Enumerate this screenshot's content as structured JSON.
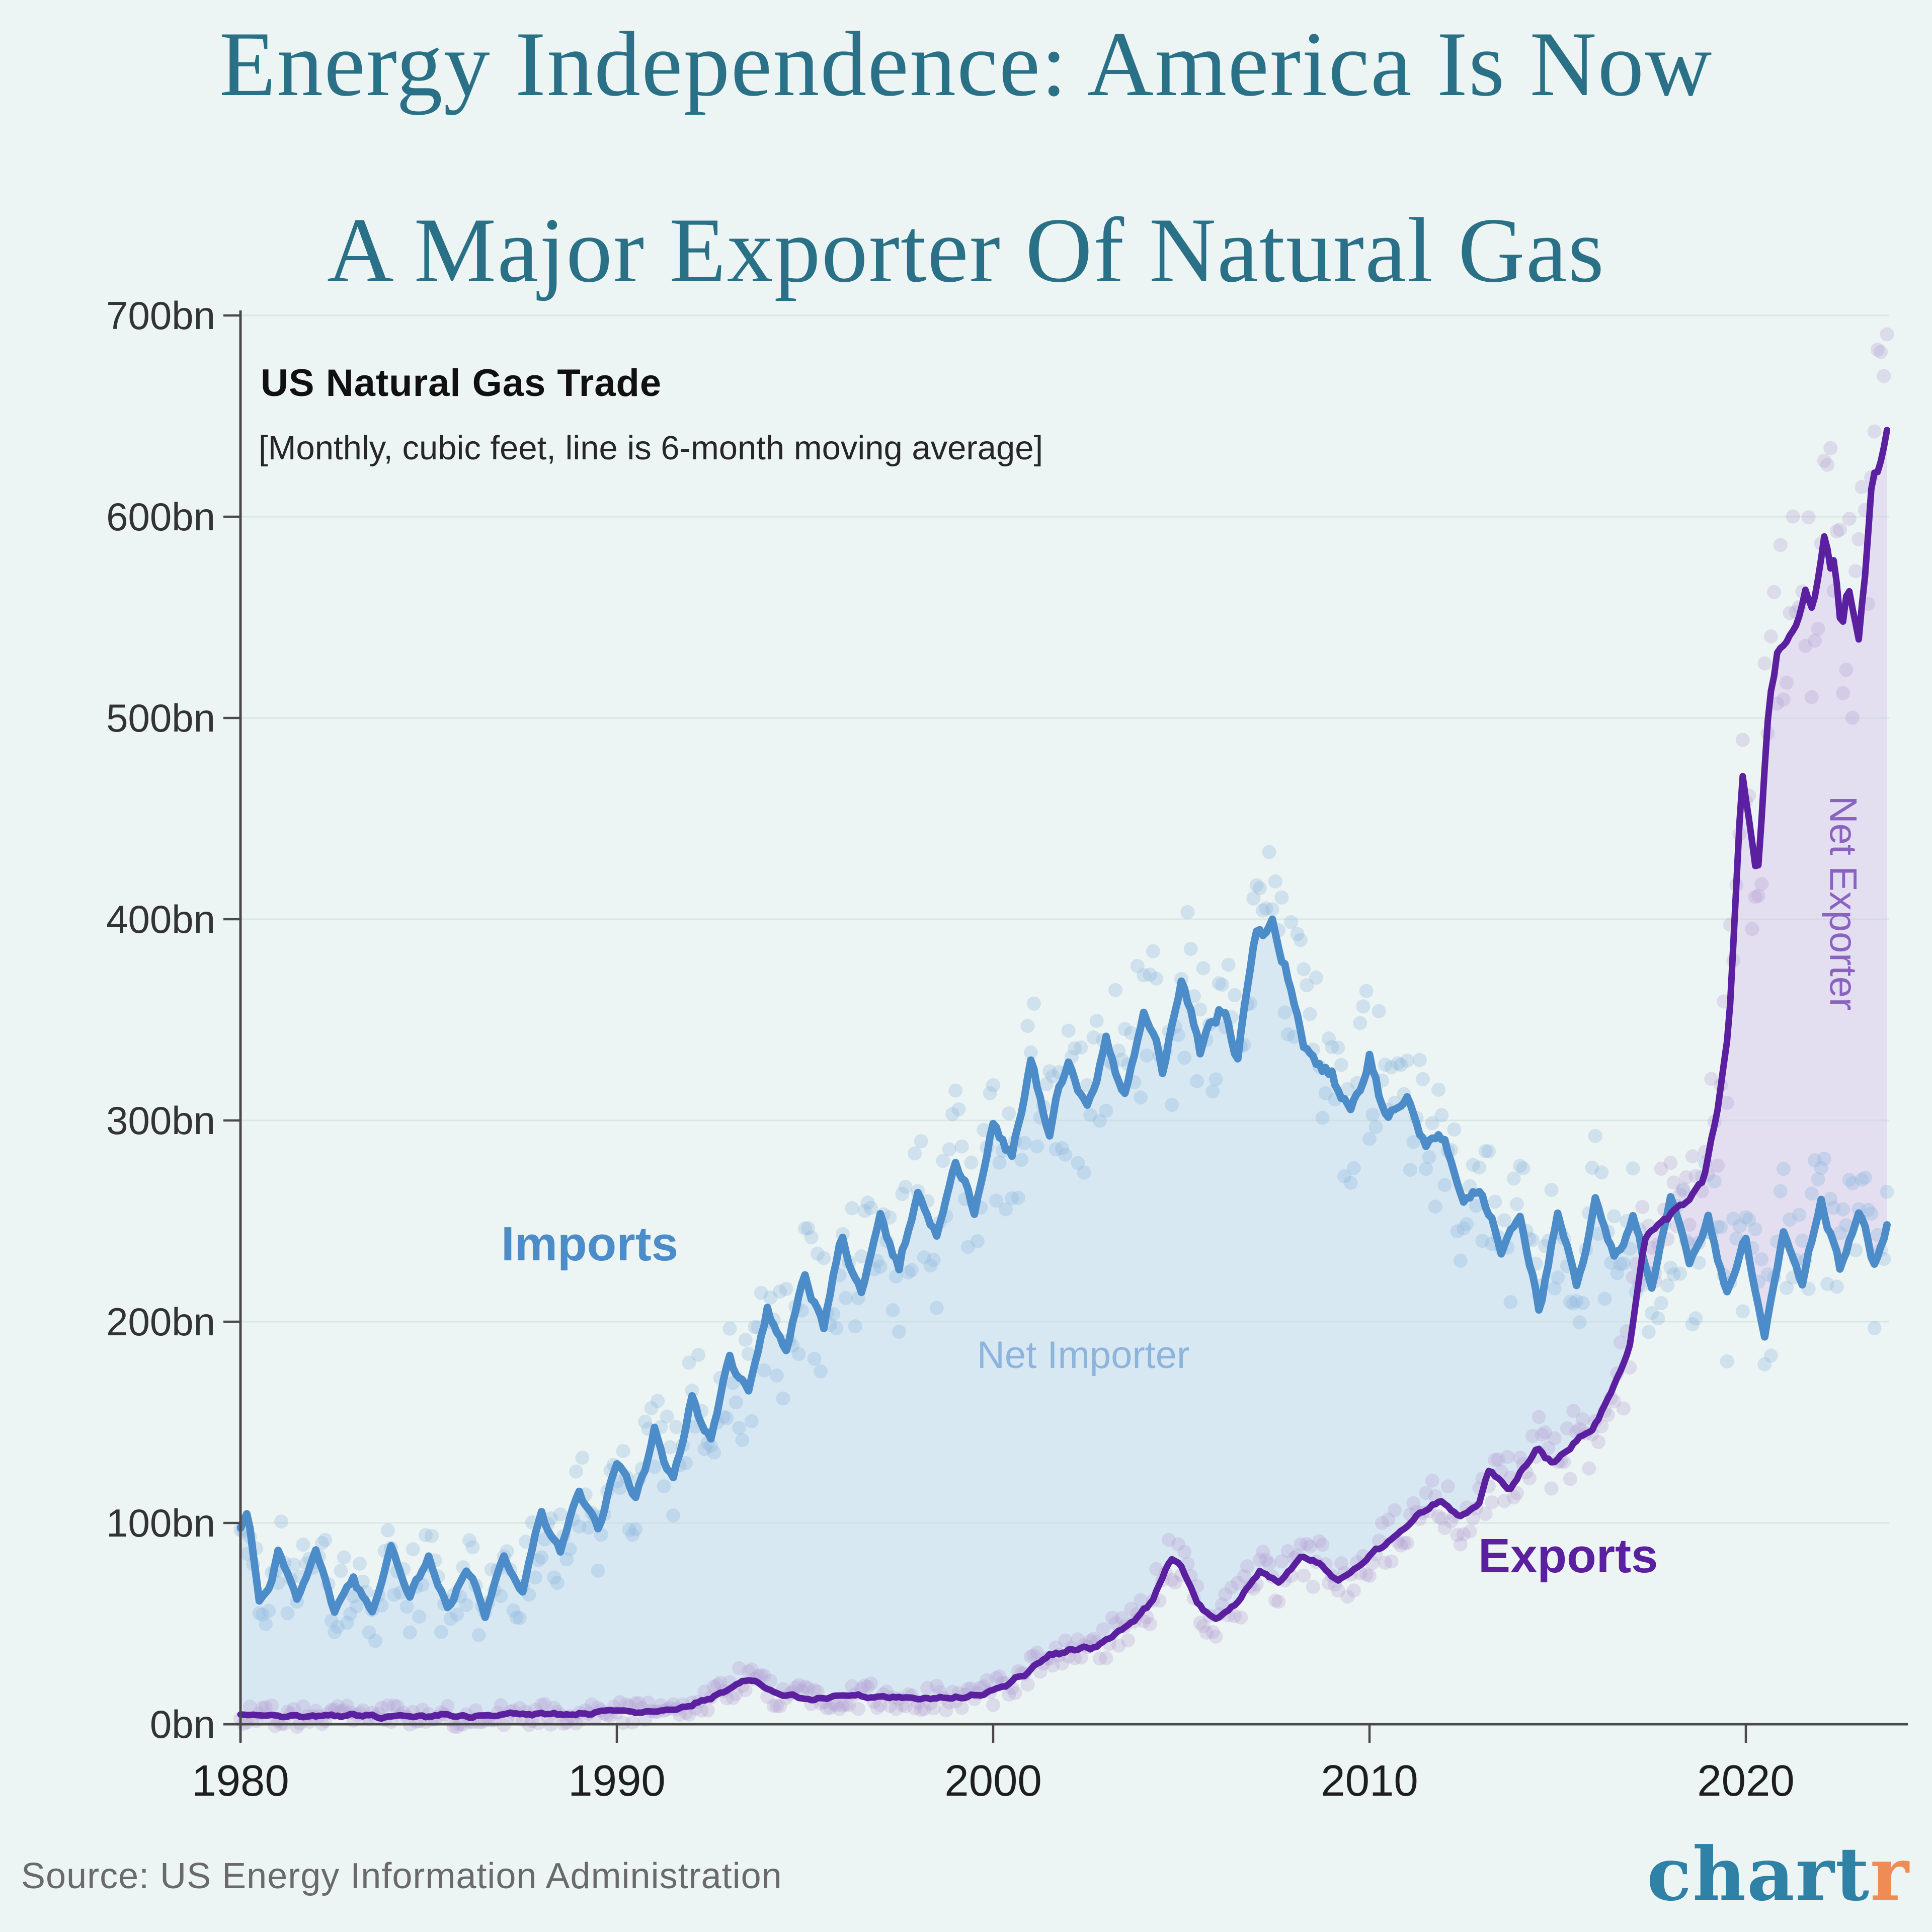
{
  "title": {
    "line1": "Energy Independence: America Is Now",
    "line2": "A Major Exporter Of Natural Gas"
  },
  "source": {
    "text": "Source: US Energy Information Administration"
  },
  "logo": {
    "chart": "chart",
    "r": "r"
  },
  "colors": {
    "background": "#ECF5F3",
    "title_teal": "#2A7187",
    "axis": "#4A4A4A",
    "gridline": "#C9D8D7",
    "y_tick_text": "#333333",
    "x_tick_text": "#1E1E1E",
    "imports_line": "#4B8CC9",
    "imports_scatter": "#8FB6DE",
    "net_importer_fill": "#D8E8F3",
    "net_importer_text": "#8CB4DC",
    "exports_line": "#5B20A0",
    "exports_scatter": "#B3A0D4",
    "net_exporter_fill": "#E3DEF0",
    "net_exporter_text": "#8A63C0",
    "logo_teal": "#2F81A6",
    "logo_orange": "#EF8C55",
    "source_gray": "#6A6A6A"
  },
  "chart_data": {
    "type": "line",
    "title": "US Natural Gas Trade",
    "subtitle": "[Monthly, cubic feet, line is 6-month moving average]",
    "unit": "billion cubic feet per month",
    "xlim": [
      1980,
      2023.8
    ],
    "ylim": [
      0,
      700
    ],
    "x_ticks": [
      1980,
      1990,
      2000,
      2010,
      2020
    ],
    "y_ticks": [
      0,
      100,
      200,
      300,
      400,
      500,
      600,
      700
    ],
    "y_tick_labels": [
      "0bn",
      "100bn",
      "200bn",
      "300bn",
      "400bn",
      "500bn",
      "600bn",
      "700bn"
    ],
    "x_tick_labels": [
      "1980",
      "1990",
      "2000",
      "2010",
      "2020"
    ],
    "grid": "horizontal gridlines at every 100bn",
    "legend_position": "inline annotations on chart",
    "annotations": {
      "imports": "Imports",
      "exports": "Exports",
      "net_importer": "Net Importer",
      "net_exporter": "Net Exporter"
    },
    "regions": {
      "net_importer": "shaded area between Imports (upper) and Exports (lower) lines from 1980 until crossover ~2017",
      "net_exporter": "shaded area between Exports (upper) and Imports (lower) lines from crossover ~2017 to end of data"
    },
    "crossover_year_approx": 2017.1,
    "series": [
      {
        "name": "Imports",
        "style": "thick line = 6-month moving average, pale dots = monthly values",
        "anchors": [
          [
            1980.0,
            98
          ],
          [
            1980.2,
            105
          ],
          [
            1980.5,
            62
          ],
          [
            1980.8,
            70
          ],
          [
            1981.0,
            88
          ],
          [
            1981.5,
            60
          ],
          [
            1982.0,
            86
          ],
          [
            1982.5,
            58
          ],
          [
            1983.0,
            72
          ],
          [
            1983.5,
            55
          ],
          [
            1984.0,
            88
          ],
          [
            1984.5,
            63
          ],
          [
            1985.0,
            84
          ],
          [
            1985.5,
            58
          ],
          [
            1986.0,
            78
          ],
          [
            1986.5,
            55
          ],
          [
            1987.0,
            84
          ],
          [
            1987.5,
            66
          ],
          [
            1988.0,
            106
          ],
          [
            1988.5,
            86
          ],
          [
            1989.0,
            116
          ],
          [
            1989.5,
            96
          ],
          [
            1990.0,
            132
          ],
          [
            1990.5,
            112
          ],
          [
            1991.0,
            146
          ],
          [
            1991.5,
            122
          ],
          [
            1992.0,
            162
          ],
          [
            1992.5,
            142
          ],
          [
            1993.0,
            182
          ],
          [
            1993.5,
            162
          ],
          [
            1994.0,
            206
          ],
          [
            1994.5,
            186
          ],
          [
            1995.0,
            222
          ],
          [
            1995.5,
            200
          ],
          [
            1996.0,
            242
          ],
          [
            1996.5,
            216
          ],
          [
            1997.0,
            252
          ],
          [
            1997.5,
            226
          ],
          [
            1998.0,
            266
          ],
          [
            1998.5,
            242
          ],
          [
            1999.0,
            282
          ],
          [
            1999.5,
            256
          ],
          [
            2000.0,
            302
          ],
          [
            2000.5,
            282
          ],
          [
            2001.0,
            332
          ],
          [
            2001.5,
            296
          ],
          [
            2002.0,
            330
          ],
          [
            2002.5,
            306
          ],
          [
            2003.0,
            342
          ],
          [
            2003.5,
            312
          ],
          [
            2004.0,
            356
          ],
          [
            2004.5,
            326
          ],
          [
            2005.0,
            372
          ],
          [
            2005.5,
            336
          ],
          [
            2006.0,
            356
          ],
          [
            2006.5,
            332
          ],
          [
            2007.0,
            392
          ],
          [
            2007.4,
            400
          ],
          [
            2007.8,
            372
          ],
          [
            2008.0,
            356
          ],
          [
            2008.5,
            330
          ],
          [
            2009.0,
            322
          ],
          [
            2009.5,
            300
          ],
          [
            2010.0,
            332
          ],
          [
            2010.5,
            300
          ],
          [
            2011.0,
            316
          ],
          [
            2011.5,
            286
          ],
          [
            2012.0,
            292
          ],
          [
            2012.5,
            262
          ],
          [
            2013.0,
            266
          ],
          [
            2013.5,
            236
          ],
          [
            2014.0,
            252
          ],
          [
            2014.5,
            206
          ],
          [
            2015.0,
            252
          ],
          [
            2015.5,
            216
          ],
          [
            2016.0,
            262
          ],
          [
            2016.5,
            230
          ],
          [
            2017.0,
            252
          ],
          [
            2017.5,
            216
          ],
          [
            2018.0,
            262
          ],
          [
            2018.5,
            226
          ],
          [
            2019.0,
            252
          ],
          [
            2019.5,
            212
          ],
          [
            2020.0,
            238
          ],
          [
            2020.5,
            192
          ],
          [
            2021.0,
            246
          ],
          [
            2021.5,
            216
          ],
          [
            2022.0,
            262
          ],
          [
            2022.5,
            226
          ],
          [
            2023.0,
            256
          ],
          [
            2023.4,
            228
          ],
          [
            2023.8,
            246
          ]
        ]
      },
      {
        "name": "Exports",
        "style": "thick line = 6-month moving average, pale dots = monthly values",
        "anchors": [
          [
            1980.0,
            4
          ],
          [
            1982.0,
            4
          ],
          [
            1984.0,
            4
          ],
          [
            1986.0,
            4
          ],
          [
            1988.0,
            5
          ],
          [
            1990.0,
            6
          ],
          [
            1991.0,
            7
          ],
          [
            1992.0,
            9
          ],
          [
            1992.8,
            16
          ],
          [
            1993.2,
            21
          ],
          [
            1993.6,
            22
          ],
          [
            1994.2,
            15
          ],
          [
            1995.0,
            13
          ],
          [
            1996.0,
            14
          ],
          [
            1997.0,
            14
          ],
          [
            1998.0,
            13
          ],
          [
            1999.0,
            13
          ],
          [
            2000.0,
            16
          ],
          [
            2000.8,
            24
          ],
          [
            2001.5,
            34
          ],
          [
            2002.2,
            37
          ],
          [
            2002.8,
            39
          ],
          [
            2003.5,
            48
          ],
          [
            2004.2,
            60
          ],
          [
            2004.7,
            82
          ],
          [
            2005.0,
            78
          ],
          [
            2005.4,
            60
          ],
          [
            2005.9,
            52
          ],
          [
            2006.5,
            61
          ],
          [
            2007.1,
            76
          ],
          [
            2007.6,
            70
          ],
          [
            2008.2,
            84
          ],
          [
            2008.7,
            78
          ],
          [
            2009.2,
            71
          ],
          [
            2009.8,
            81
          ],
          [
            2010.3,
            88
          ],
          [
            2010.9,
            97
          ],
          [
            2011.4,
            106
          ],
          [
            2011.9,
            110
          ],
          [
            2012.4,
            102
          ],
          [
            2012.9,
            109
          ],
          [
            2013.2,
            128
          ],
          [
            2013.7,
            117
          ],
          [
            2014.1,
            127
          ],
          [
            2014.5,
            137
          ],
          [
            2014.9,
            129
          ],
          [
            2015.4,
            139
          ],
          [
            2015.9,
            147
          ],
          [
            2016.4,
            163
          ],
          [
            2016.9,
            186
          ],
          [
            2017.3,
            242
          ],
          [
            2017.7,
            250
          ],
          [
            2018.1,
            255
          ],
          [
            2018.5,
            262
          ],
          [
            2018.9,
            272
          ],
          [
            2019.2,
            300
          ],
          [
            2019.55,
            345
          ],
          [
            2019.9,
            476
          ],
          [
            2020.3,
            416
          ],
          [
            2020.6,
            505
          ],
          [
            2020.85,
            538
          ],
          [
            2021.05,
            535
          ],
          [
            2021.25,
            546
          ],
          [
            2021.45,
            552
          ],
          [
            2021.6,
            564
          ],
          [
            2021.75,
            556
          ],
          [
            2021.95,
            572
          ],
          [
            2022.1,
            594
          ],
          [
            2022.25,
            576
          ],
          [
            2022.35,
            580
          ],
          [
            2022.55,
            542
          ],
          [
            2022.7,
            568
          ],
          [
            2022.85,
            556
          ],
          [
            2023.0,
            540
          ],
          [
            2023.2,
            578
          ],
          [
            2023.35,
            618
          ],
          [
            2023.5,
            622
          ],
          [
            2023.65,
            632
          ],
          [
            2023.8,
            645
          ]
        ]
      }
    ],
    "scatter": {
      "cadence": "monthly",
      "jitter_model": "value * pct + const (uniform, both directions)",
      "jitter": {
        "Imports": [
          0.08,
          16
        ],
        "Exports": [
          0.1,
          5
        ]
      }
    }
  }
}
